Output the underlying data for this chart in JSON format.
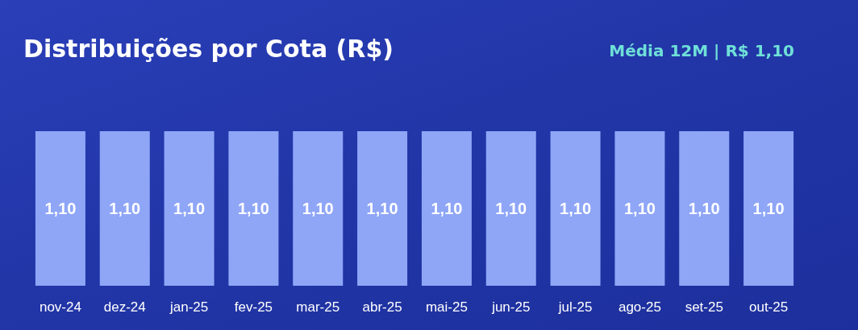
{
  "chart_data": {
    "type": "bar",
    "title": "Distribuições por Cota (R$)",
    "subtitle": "Média 12M | R$ 1,10",
    "categories": [
      "nov-24",
      "dez-24",
      "jan-25",
      "fev-25",
      "mar-25",
      "abr-25",
      "mai-25",
      "jun-25",
      "jul-25",
      "ago-25",
      "set-25",
      "out-25"
    ],
    "values": [
      1.1,
      1.1,
      1.1,
      1.1,
      1.1,
      1.1,
      1.1,
      1.1,
      1.1,
      1.1,
      1.1,
      1.1
    ],
    "value_labels": [
      "1,10",
      "1,10",
      "1,10",
      "1,10",
      "1,10",
      "1,10",
      "1,10",
      "1,10",
      "1,10",
      "1,10",
      "1,10",
      "1,10"
    ],
    "color": "#8fa6f7"
  }
}
